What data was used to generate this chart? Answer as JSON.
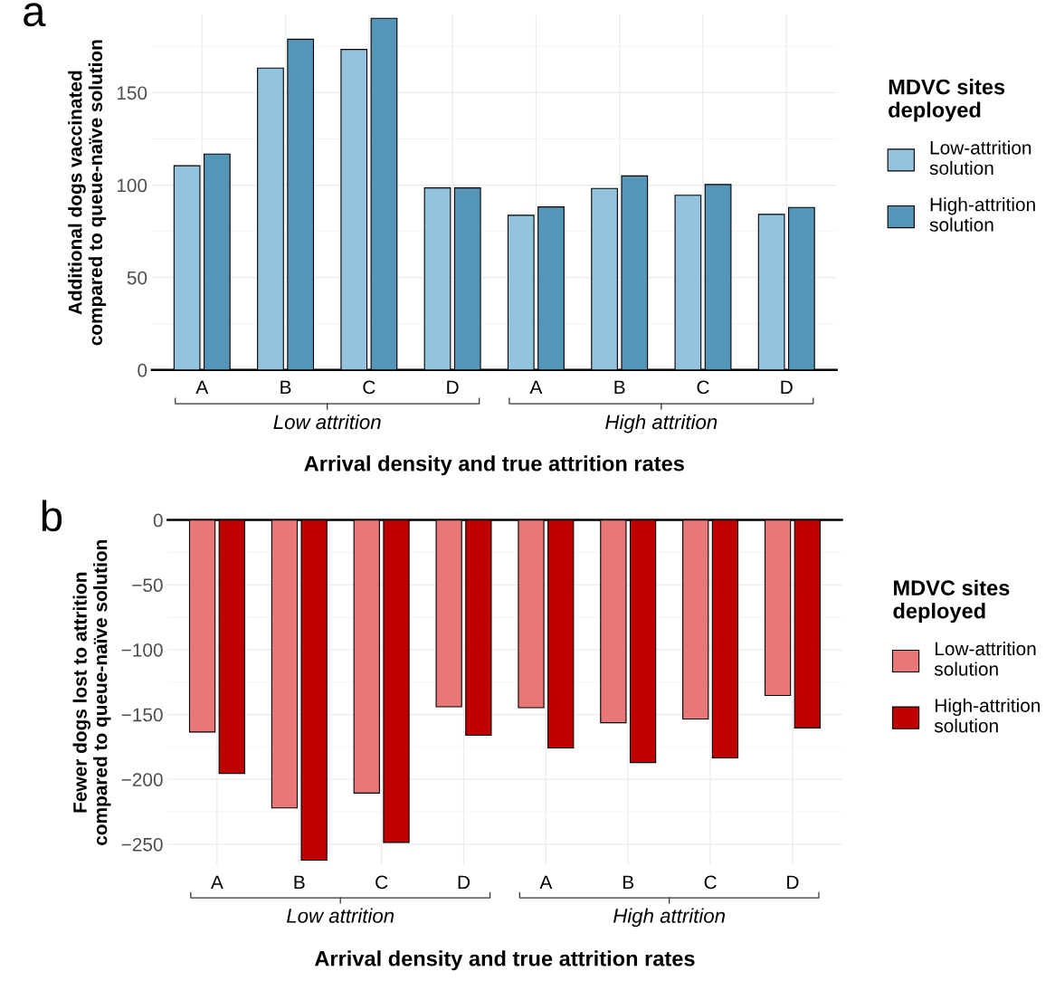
{
  "chart_data": [
    {
      "type": "bar",
      "title": "a",
      "xlabel": "Arrival density and true attrition rates",
      "ylabel": "Additional dogs vaccinated\ncompared to queue-naïve solution",
      "legend_title": "MDVC sites\ndeployed",
      "legend": "right",
      "categories": [
        "A",
        "B",
        "C",
        "D",
        "A",
        "B",
        "C",
        "D"
      ],
      "annotations": [
        "Low attrition",
        "High attrition"
      ],
      "series": [
        {
          "name": "Low-attrition\nsolution",
          "color": "#94c3dd",
          "values": [
            110.5,
            163.3,
            173.4,
            98.5,
            83.7,
            98.2,
            94.5,
            84.2
          ]
        },
        {
          "name": "High-attrition\nsolution",
          "color": "#5595b8",
          "values": [
            116.8,
            178.9,
            190.2,
            98.5,
            88.2,
            105,
            100.3,
            87.9
          ]
        }
      ],
      "ylim": [
        0,
        192
      ],
      "yticks": [
        0,
        50,
        100,
        150
      ],
      "grid": true
    },
    {
      "type": "bar",
      "title": "b",
      "xlabel": "Arrival density and true attrition rates",
      "ylabel": "Fewer dogs lost to attrition\ncompared to queue-naïve solution",
      "legend_title": "MDVC sites\ndeployed",
      "legend": "right",
      "categories": [
        "A",
        "B",
        "C",
        "D",
        "A",
        "B",
        "C",
        "D"
      ],
      "annotations": [
        "Low attrition",
        "High attrition"
      ],
      "series": [
        {
          "name": "Low-attrition\nsolution",
          "color": "#e87777",
          "values": [
            -163.5,
            -222,
            -210.6,
            -144,
            -144.7,
            -156.3,
            -153.4,
            -135.3
          ]
        },
        {
          "name": "High-attrition\nsolution",
          "color": "#c00000",
          "values": [
            -195.4,
            -262.3,
            -248.6,
            -166,
            -175.8,
            -187,
            -183.4,
            -160.3
          ]
        }
      ],
      "ylim": [
        -266,
        0
      ],
      "yticks": [
        -250,
        -200,
        -150,
        -100,
        -50,
        0
      ],
      "grid": true
    }
  ]
}
